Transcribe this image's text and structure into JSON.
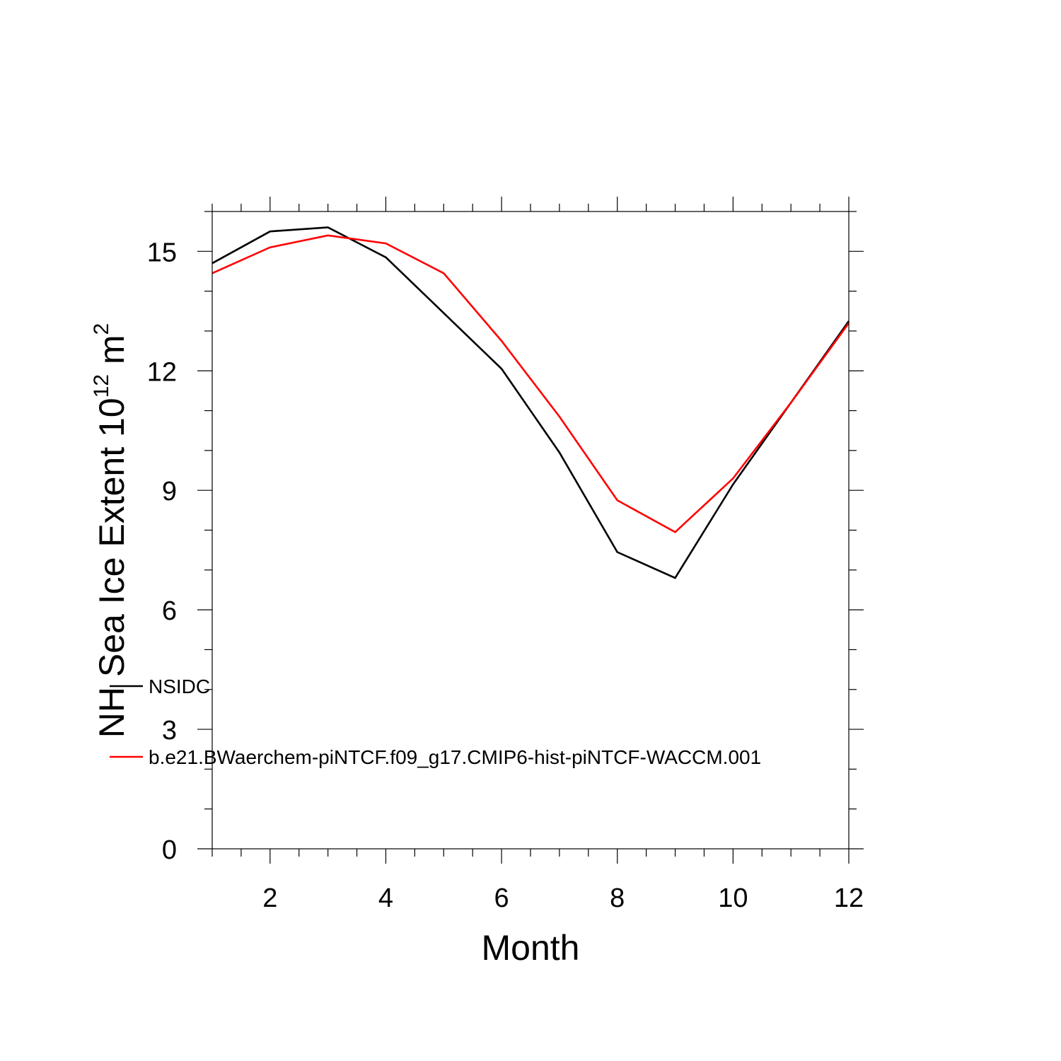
{
  "chart_data": {
    "type": "line",
    "xlabel": "Month",
    "ylabel": {
      "prefix": "NH Sea Ice Extent 10",
      "superscript_1": "12",
      "middle": " m",
      "superscript_2": "2"
    },
    "xlim": [
      1,
      12
    ],
    "ylim": [
      0,
      16
    ],
    "x_ticks": [
      2,
      4,
      6,
      8,
      10,
      12
    ],
    "y_ticks": [
      0,
      3,
      6,
      9,
      12,
      15
    ],
    "x_minor_step": 0.5,
    "y_minor_step": 1,
    "grid": false,
    "legend_position": "lower-left",
    "x": [
      1,
      2,
      3,
      4,
      5,
      6,
      7,
      8,
      9,
      10,
      11,
      12
    ],
    "series": [
      {
        "name": "NSIDC",
        "color": "#000000",
        "values": [
          14.7,
          15.5,
          15.6,
          14.85,
          13.45,
          12.05,
          9.95,
          7.45,
          6.8,
          9.15,
          11.2,
          13.25
        ]
      },
      {
        "name": "b.e21.BWaerchem-piNTCF.f09_g17.CMIP6-hist-piNTCF-WACCM.001",
        "color": "#ff0000",
        "values": [
          14.45,
          15.1,
          15.4,
          15.2,
          14.45,
          12.75,
          10.85,
          8.75,
          7.95,
          9.3,
          11.2,
          13.2
        ]
      }
    ]
  }
}
